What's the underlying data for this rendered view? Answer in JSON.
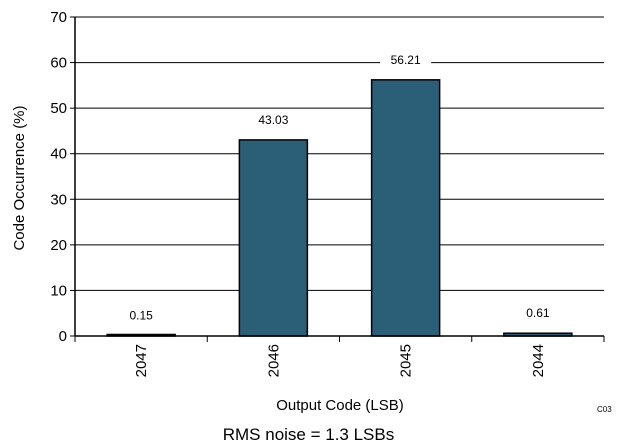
{
  "chart_data": {
    "type": "bar",
    "categories": [
      "2047",
      "2046",
      "2045",
      "2044"
    ],
    "values": [
      0.15,
      43.03,
      56.21,
      0.61
    ],
    "data_labels": [
      "0.15",
      "43.03",
      "56.21",
      "0.61"
    ],
    "xlabel": "Output Code (LSB)",
    "ylabel": "Code Occurrence (%)",
    "ylim": [
      0,
      70
    ],
    "yticks": [
      "0",
      "10",
      "20",
      "30",
      "40",
      "50",
      "60",
      "70"
    ],
    "grid": true,
    "colors": {
      "bar": "#2b5f78",
      "bar_edge": "#000000",
      "grid": "#000000",
      "label_bg": "#ffffff"
    }
  },
  "figure_code": "C03",
  "caption": "RMS noise = 1.3 LSBs"
}
